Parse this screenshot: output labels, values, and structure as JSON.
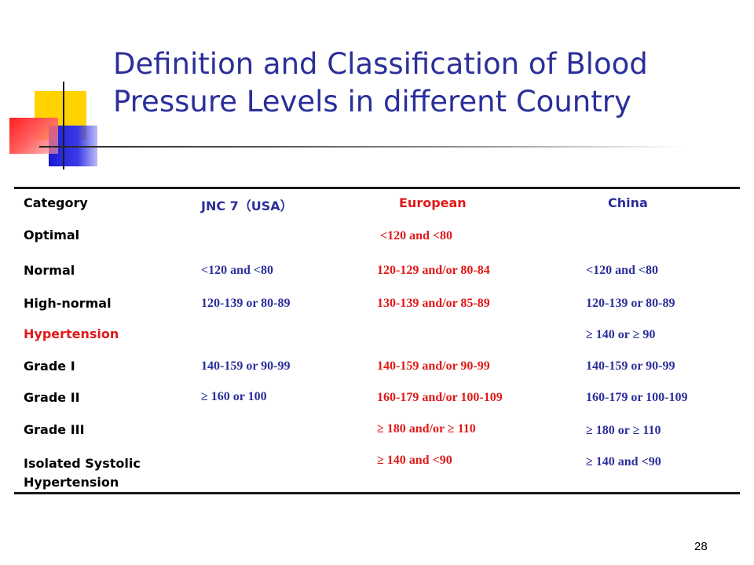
{
  "title": "Definition and Classification of Blood Pressure Levels in different Country",
  "table": {
    "headers": [
      "Category",
      "JNC 7（USA）",
      "European",
      "China"
    ],
    "rows": [
      {
        "category": "Optimal",
        "jnc7": "",
        "european": "<120 and <80",
        "china": ""
      },
      {
        "category": "Normal",
        "jnc7": "<120 and <80",
        "european": "120-129 and/or 80-84",
        "china": "<120 and <80"
      },
      {
        "category": "High-normal",
        "jnc7": "120-139 or 80-89",
        "european": "130-139 and/or 85-89",
        "china": "120-139 or 80-89"
      },
      {
        "category": "Hypertension",
        "jnc7": "",
        "european": "",
        "china": "≥ 140 or ≥ 90"
      },
      {
        "category": "Grade I",
        "jnc7": "140-159 or 90-99",
        "european": "140-159 and/or 90-99",
        "china": "140-159 or 90-99"
      },
      {
        "category": "Grade II",
        "jnc7": "≥ 160 or 100",
        "european": "160-179 and/or 100-109",
        "china": "160-179 or 100-109"
      },
      {
        "category": "Grade III",
        "jnc7": "",
        "european": "≥ 180 and/or ≥ 110",
        "china": "≥ 180 or ≥ 110"
      },
      {
        "category": "Isolated Systolic Hypertension",
        "jnc7": "",
        "european": "≥ 140 and <90",
        "china": "≥ 140 and <90"
      }
    ]
  },
  "slide_number": "28",
  "colors": {
    "title": "#2b2f9a",
    "jnc7": "#2b2f9a",
    "european": "#e01919",
    "china": "#2b2f9a",
    "hypertension_label": "#e01919"
  }
}
